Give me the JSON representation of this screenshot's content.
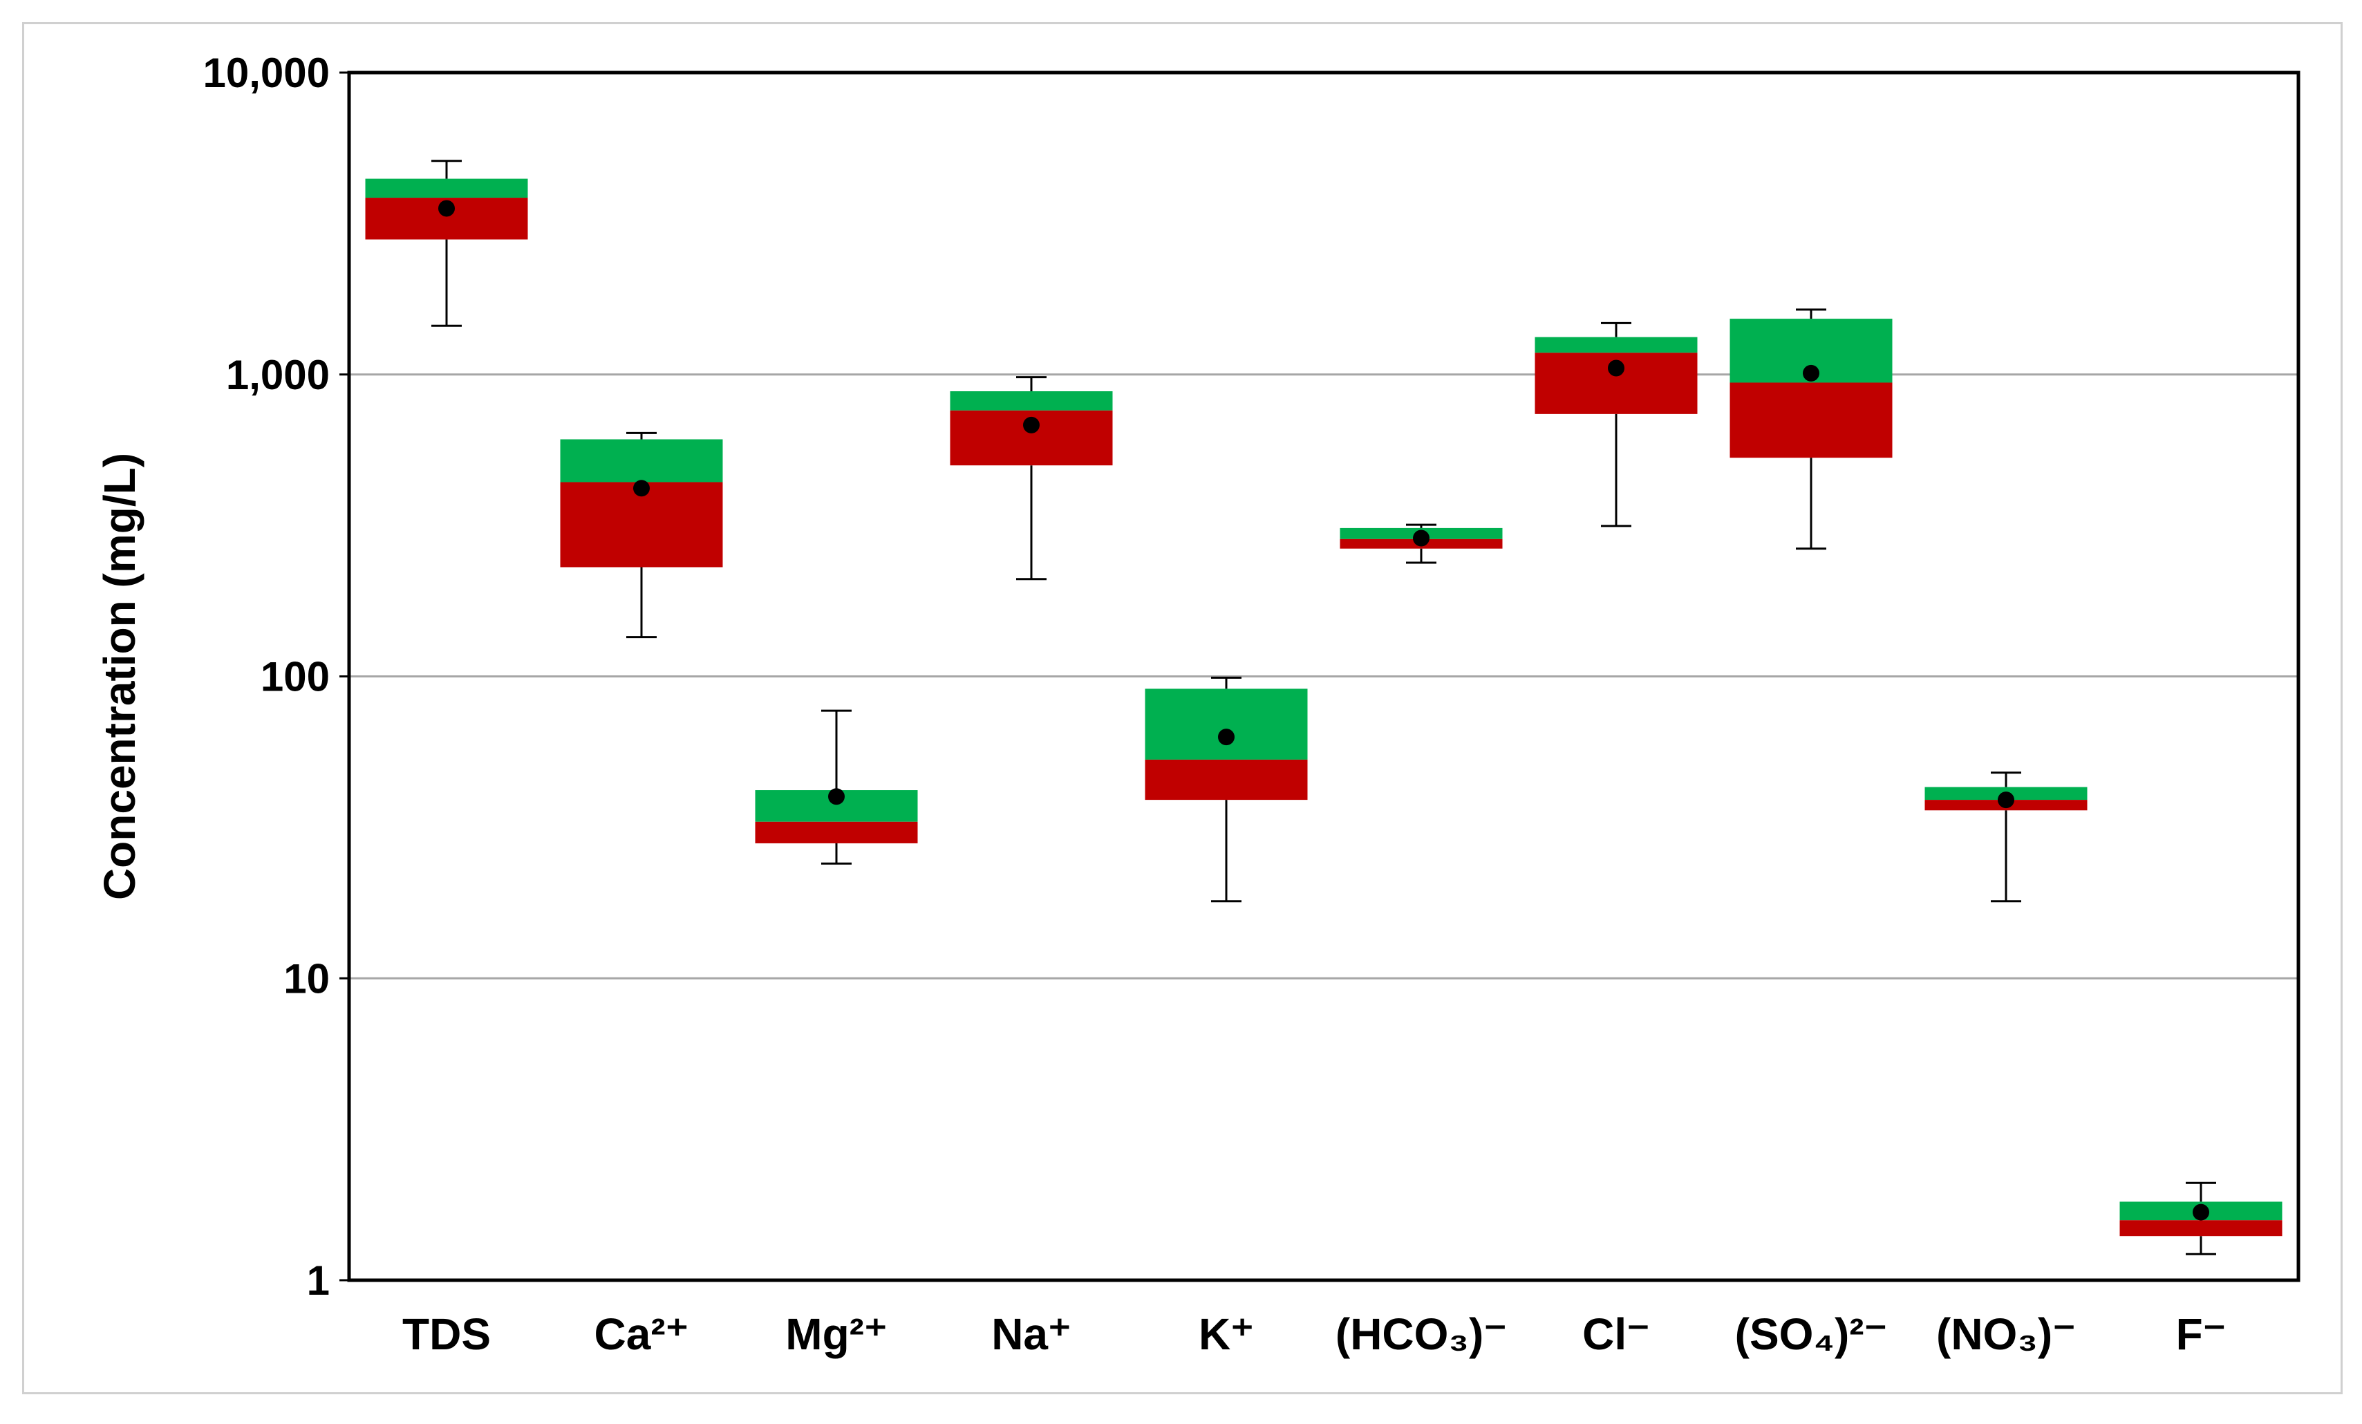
{
  "colors": {
    "upper_box": "#00b050",
    "lower_box": "#c00000",
    "mean_marker": "#000000"
  },
  "chart_data": {
    "type": "boxplot",
    "title": "",
    "xlabel": "",
    "ylabel": "Concentration (mg/L)",
    "yscale": "log",
    "ylim": [
      1,
      10000
    ],
    "yticks": [
      1,
      10,
      100,
      1000,
      10000
    ],
    "ytick_labels": [
      "1",
      "10",
      "100",
      "1,000",
      "10,000"
    ],
    "grid": "horizontal",
    "categories": [
      "TDS",
      "Ca²⁺",
      "Mg²⁺",
      "Na⁺",
      "K⁺",
      "(HCO₃)⁻",
      "Cl⁻",
      "(SO₄)²⁻",
      "(NO₃)⁻",
      "F⁻"
    ],
    "boxes": [
      {
        "category": "TDS",
        "min": 1450,
        "q1": 2800,
        "median": 3850,
        "q3": 4450,
        "max": 5100,
        "mean": 3550
      },
      {
        "category": "Ca²⁺",
        "min": 135,
        "q1": 230,
        "median": 440,
        "q3": 610,
        "max": 640,
        "mean": 420
      },
      {
        "category": "Mg²⁺",
        "min": 24,
        "q1": 28,
        "median": 33,
        "q3": 42,
        "max": 77,
        "mean": 40
      },
      {
        "category": "Na⁺",
        "min": 210,
        "q1": 500,
        "median": 760,
        "q3": 880,
        "max": 980,
        "mean": 680
      },
      {
        "category": "K⁺",
        "min": 18,
        "q1": 39,
        "median": 53,
        "q3": 91,
        "max": 99,
        "mean": 63
      },
      {
        "category": "(HCO₃)⁻",
        "min": 238,
        "q1": 265,
        "median": 285,
        "q3": 310,
        "max": 318,
        "mean": 287
      },
      {
        "category": "Cl⁻",
        "min": 315,
        "q1": 740,
        "median": 1180,
        "q3": 1330,
        "max": 1480,
        "mean": 1050
      },
      {
        "category": "(SO₄)²⁻",
        "min": 265,
        "q1": 530,
        "median": 940,
        "q3": 1530,
        "max": 1640,
        "mean": 1010
      },
      {
        "category": "(NO₃)⁻",
        "min": 18,
        "q1": 36,
        "median": 39,
        "q3": 43,
        "max": 48,
        "mean": 39
      },
      {
        "category": "F⁻",
        "min": 1.22,
        "q1": 1.4,
        "median": 1.58,
        "q3": 1.82,
        "max": 2.1,
        "mean": 1.68
      }
    ]
  }
}
